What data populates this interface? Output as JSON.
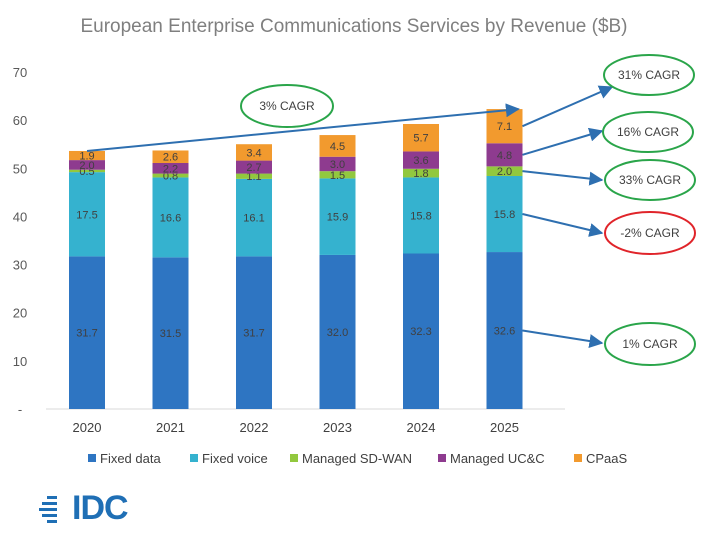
{
  "chart_data": {
    "type": "bar",
    "stacked": true,
    "title": "European Enterprise Communications Services by Revenue ($B)",
    "categories": [
      "2020",
      "2021",
      "2022",
      "2023",
      "2024",
      "2025"
    ],
    "ylim": [
      0,
      70
    ],
    "yticks": [
      "-",
      "10",
      "20",
      "30",
      "40",
      "50",
      "60",
      "70"
    ],
    "grid": false,
    "legend_position": "bottom",
    "series": [
      {
        "name": "Fixed data",
        "color": "#2e75c2",
        "values": [
          31.7,
          31.5,
          31.7,
          32.0,
          32.3,
          32.6
        ],
        "labels": [
          "31.7",
          "31.5",
          "31.7",
          "32.0",
          "32.3",
          "32.6"
        ]
      },
      {
        "name": "Fixed voice",
        "color": "#35b2cf",
        "values": [
          17.5,
          16.6,
          16.1,
          15.9,
          15.8,
          15.8
        ],
        "labels": [
          "17.5",
          "16.6",
          "16.1",
          "15.9",
          "15.8",
          "15.8"
        ]
      },
      {
        "name": "Managed SD-WAN",
        "color": "#92c83e",
        "values": [
          0.5,
          0.8,
          1.1,
          1.5,
          1.8,
          2.0
        ],
        "labels": [
          "0.5",
          "0.8",
          "1.1",
          "1.5",
          "1.8",
          "2.0"
        ]
      },
      {
        "name": "Managed UC&C",
        "color": "#8e3b8f",
        "values": [
          2.0,
          2.2,
          2.7,
          3.0,
          3.6,
          4.8
        ],
        "labels": [
          "2.0",
          "2.2",
          "2.7",
          "3.0",
          "3.6",
          "4.8"
        ]
      },
      {
        "name": "CPaaS",
        "color": "#f29a2e",
        "values": [
          1.9,
          2.6,
          3.4,
          4.5,
          5.7,
          7.1
        ],
        "labels": [
          "1.9",
          "2.6",
          "3.4",
          "4.5",
          "5.7",
          "7.1"
        ]
      }
    ],
    "annotations": [
      {
        "text": "3% CAGR",
        "border_color": "#2aa54a"
      },
      {
        "text": "31% CAGR",
        "border_color": "#2aa54a"
      },
      {
        "text": "16% CAGR",
        "border_color": "#2aa54a"
      },
      {
        "text": "33% CAGR",
        "border_color": "#2aa54a"
      },
      {
        "text": "-2% CAGR",
        "border_color": "#e0242a"
      },
      {
        "text": "1% CAGR",
        "border_color": "#2aa54a"
      }
    ]
  },
  "logo": {
    "text": "IDC",
    "color": "#1f6fb5"
  }
}
